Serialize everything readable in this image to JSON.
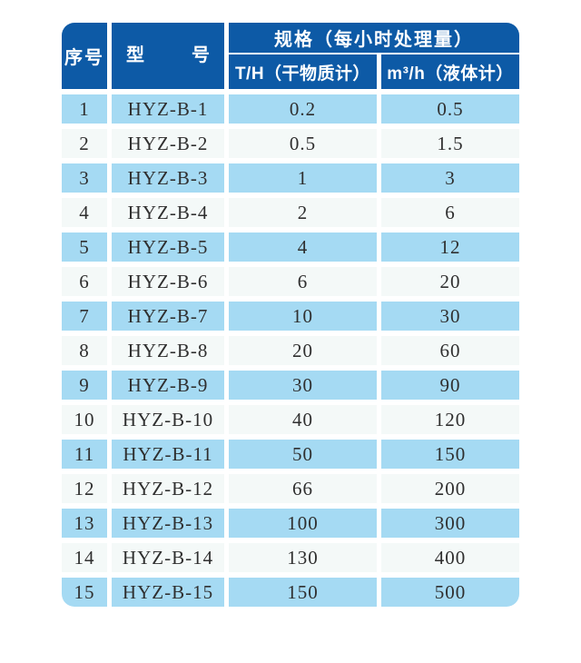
{
  "colors": {
    "header_bg": "#0d5aa6",
    "header_text": "#ffffff",
    "row_odd_bg": "#a5daf3",
    "row_even_bg": "#f4f9f8",
    "cell_text": "#2f2f2f",
    "page_bg": "#ffffff"
  },
  "table": {
    "header": {
      "serial": "序号",
      "model": "型 号",
      "spec_group": "规格（每小时处理量）",
      "dry_basis": "T/H（干物质计）",
      "liquid_basis": "m³/h（液体计）"
    },
    "rows": [
      {
        "no": "1",
        "model": "HYZ-B-1",
        "dry": "0.2",
        "liquid": "0.5"
      },
      {
        "no": "2",
        "model": "HYZ-B-2",
        "dry": "0.5",
        "liquid": "1.5"
      },
      {
        "no": "3",
        "model": "HYZ-B-3",
        "dry": "1",
        "liquid": "3"
      },
      {
        "no": "4",
        "model": "HYZ-B-4",
        "dry": "2",
        "liquid": "6"
      },
      {
        "no": "5",
        "model": "HYZ-B-5",
        "dry": "4",
        "liquid": "12"
      },
      {
        "no": "6",
        "model": "HYZ-B-6",
        "dry": "6",
        "liquid": "20"
      },
      {
        "no": "7",
        "model": "HYZ-B-7",
        "dry": "10",
        "liquid": "30"
      },
      {
        "no": "8",
        "model": "HYZ-B-8",
        "dry": "20",
        "liquid": "60"
      },
      {
        "no": "9",
        "model": "HYZ-B-9",
        "dry": "30",
        "liquid": "90"
      },
      {
        "no": "10",
        "model": "HYZ-B-10",
        "dry": "40",
        "liquid": "120"
      },
      {
        "no": "11",
        "model": "HYZ-B-11",
        "dry": "50",
        "liquid": "150"
      },
      {
        "no": "12",
        "model": "HYZ-B-12",
        "dry": "66",
        "liquid": "200"
      },
      {
        "no": "13",
        "model": "HYZ-B-13",
        "dry": "100",
        "liquid": "300"
      },
      {
        "no": "14",
        "model": "HYZ-B-14",
        "dry": "130",
        "liquid": "400"
      },
      {
        "no": "15",
        "model": "HYZ-B-15",
        "dry": "150",
        "liquid": "500"
      }
    ]
  },
  "chart_data": {
    "type": "table",
    "title": "规格（每小时处理量）",
    "columns": [
      "序号",
      "型号",
      "T/H（干物质计）",
      "m³/h（液体计）"
    ],
    "rows": [
      [
        "1",
        "HYZ-B-1",
        "0.2",
        "0.5"
      ],
      [
        "2",
        "HYZ-B-2",
        "0.5",
        "1.5"
      ],
      [
        "3",
        "HYZ-B-3",
        "1",
        "3"
      ],
      [
        "4",
        "HYZ-B-4",
        "2",
        "6"
      ],
      [
        "5",
        "HYZ-B-5",
        "4",
        "12"
      ],
      [
        "6",
        "HYZ-B-6",
        "6",
        "20"
      ],
      [
        "7",
        "HYZ-B-7",
        "10",
        "30"
      ],
      [
        "8",
        "HYZ-B-8",
        "20",
        "60"
      ],
      [
        "9",
        "HYZ-B-9",
        "30",
        "90"
      ],
      [
        "10",
        "HYZ-B-10",
        "40",
        "120"
      ],
      [
        "11",
        "HYZ-B-11",
        "50",
        "150"
      ],
      [
        "12",
        "HYZ-B-12",
        "66",
        "200"
      ],
      [
        "13",
        "HYZ-B-13",
        "100",
        "300"
      ],
      [
        "14",
        "HYZ-B-14",
        "130",
        "400"
      ],
      [
        "15",
        "HYZ-B-15",
        "150",
        "500"
      ]
    ],
    "layout": {
      "striped": true,
      "header_rows": 2,
      "serial_and_model_span_both_header_rows": true
    }
  }
}
